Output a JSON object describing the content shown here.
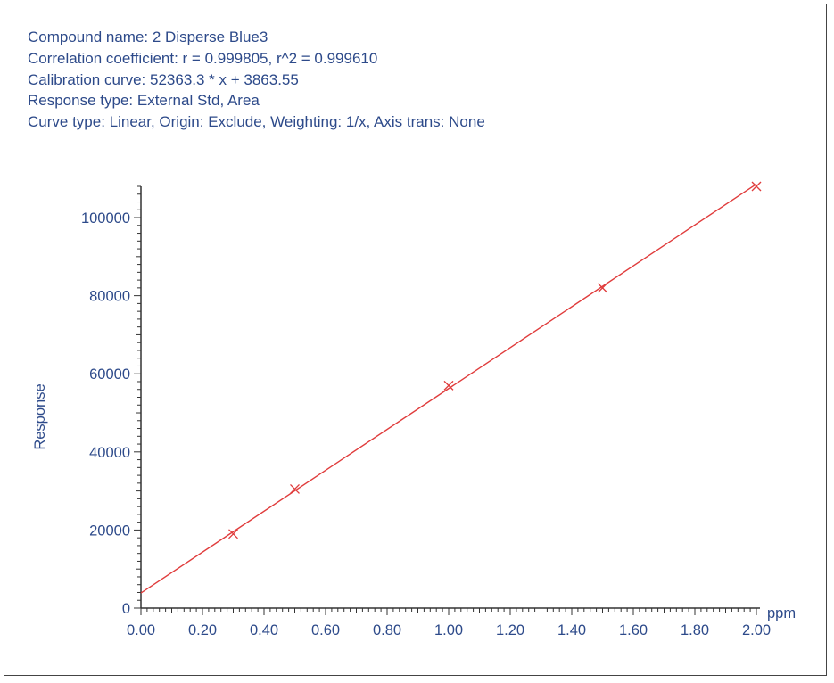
{
  "header": {
    "line1": "Compound name: 2  Disperse Blue3",
    "line2": "Correlation coefficient: r = 0.999805, r^2 = 0.999610",
    "line3": "Calibration curve: 52363.3 * x + 3863.55",
    "line4": "Response type: External Std, Area",
    "line5": "Curve type: Linear, Origin: Exclude, Weighting: 1/x, Axis trans: None"
  },
  "colors": {
    "text": "#2d4a8a",
    "axis": "#333333",
    "curve": "#e03c3c"
  },
  "chart_data": {
    "type": "scatter",
    "title": "",
    "xlabel": "ppm",
    "ylabel": "Response",
    "xlim": [
      0,
      2
    ],
    "ylim": [
      0,
      108000
    ],
    "x_ticks": [
      0,
      0.2,
      0.4,
      0.6,
      0.8,
      1.0,
      1.2,
      1.4,
      1.6,
      1.8,
      2.0
    ],
    "x_tick_labels": [
      "0.00",
      "0.20",
      "0.40",
      "0.60",
      "0.80",
      "1.00",
      "1.20",
      "1.40",
      "1.60",
      "1.80",
      "2.00"
    ],
    "y_ticks": [
      0,
      20000,
      40000,
      60000,
      80000,
      100000
    ],
    "y_tick_labels": [
      "0",
      "20000",
      "40000",
      "60000",
      "80000",
      "100000"
    ],
    "points": [
      {
        "x": 0.3,
        "y": 19000
      },
      {
        "x": 0.5,
        "y": 30500
      },
      {
        "x": 1.0,
        "y": 57000
      },
      {
        "x": 1.5,
        "y": 82000
      },
      {
        "x": 2.0,
        "y": 108000
      }
    ],
    "fit": {
      "slope": 52363.3,
      "intercept": 3863.55
    },
    "grid": false,
    "marker": "x"
  }
}
